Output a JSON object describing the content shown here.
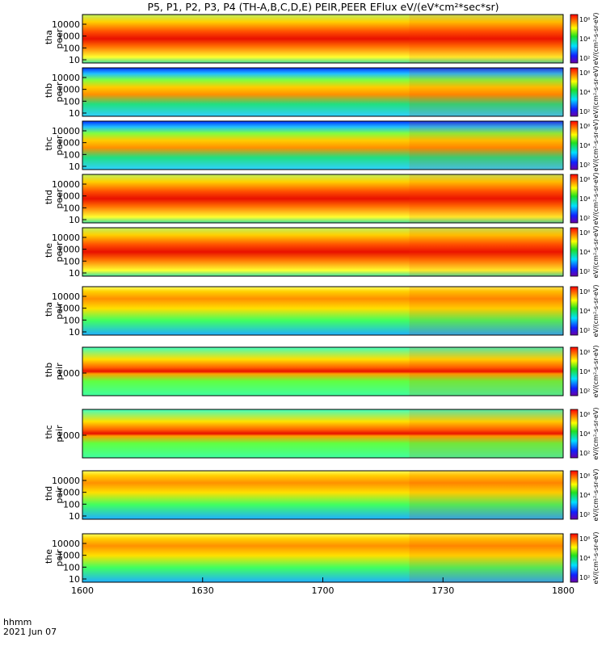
{
  "title": "P5, P1, P2, P3, P4 (TH-A,B,C,D,E) PEIR,PEER EFlux eV/(eV*cm²*sec*sr)",
  "footer": {
    "hhmm": "hhmm",
    "date": "2021 Jun 07"
  },
  "colorbar_unit": "eV/(cm²-s-sr-eV)",
  "chart_data": {
    "type": "heatmap",
    "x_ticks": [
      "1600",
      "1630",
      "1700",
      "1730",
      "1800"
    ],
    "x_range_minutes": [
      0,
      120
    ],
    "y_scale": "log",
    "colormap": "rainbow (blue → cyan → green → yellow → red)",
    "colorbar_ticks": [
      "10⁶",
      "10⁴",
      "10²"
    ],
    "panels": [
      {
        "label1": "tha",
        "label2": "peer",
        "yticks": [
          "10000",
          "1000",
          "100",
          "10"
        ],
        "level": "high"
      },
      {
        "label1": "thb",
        "label2": "peer",
        "yticks": [
          "10000",
          "1000",
          "100",
          "10"
        ],
        "level": "mid"
      },
      {
        "label1": "thc",
        "label2": "peer",
        "yticks": [
          "10000",
          "1000",
          "100",
          "10"
        ],
        "level": "mid"
      },
      {
        "label1": "thd",
        "label2": "peer",
        "yticks": [
          "10000",
          "1000",
          "100",
          "10"
        ],
        "level": "high"
      },
      {
        "label1": "the",
        "label2": "peer",
        "yticks": [
          "10000",
          "1000",
          "100",
          "10"
        ],
        "level": "high"
      },
      {
        "label1": "tha",
        "label2": "peir",
        "yticks": [
          "10000",
          "1000",
          "100",
          "10"
        ],
        "level": "low"
      },
      {
        "label1": "thb",
        "label2": "peir",
        "yticks": [
          "1000"
        ],
        "level": "band"
      },
      {
        "label1": "thc",
        "label2": "peir",
        "yticks": [
          "1000"
        ],
        "level": "band"
      },
      {
        "label1": "thd",
        "label2": "peir",
        "yticks": [
          "10000",
          "1000",
          "100",
          "10"
        ],
        "level": "low"
      },
      {
        "label1": "the",
        "label2": "peir",
        "yticks": [
          "10000",
          "1000",
          "100",
          "10"
        ],
        "level": "low"
      }
    ]
  }
}
